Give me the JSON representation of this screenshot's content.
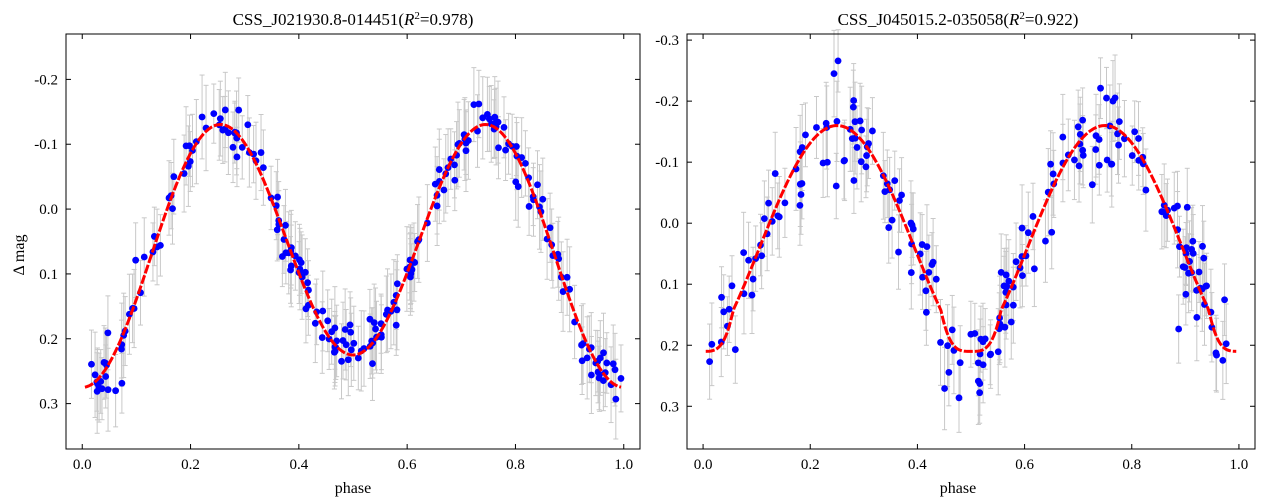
{
  "chart_data": [
    {
      "type": "scatter",
      "title_prefix": "CSS_J021930.8-014451(",
      "title_r": "R",
      "title_sup": "2",
      "title_suffix": "=0.978)",
      "xlabel": "phase",
      "ylabel": "Δ mag",
      "y_inverted": true,
      "xlim": [
        -0.03,
        1.03
      ],
      "ylim": [
        0.37,
        -0.27
      ],
      "xticks": [
        0.0,
        0.2,
        0.4,
        0.6,
        0.8,
        1.0
      ],
      "xtick_labels": [
        "0.0",
        "0.2",
        "0.4",
        "0.6",
        "0.8",
        "1.0"
      ],
      "yticks": [
        -0.2,
        -0.1,
        0.0,
        0.1,
        0.2,
        0.3
      ],
      "ytick_labels": [
        "-0.2",
        "-0.1",
        "0.0",
        "0.1",
        "0.2",
        "0.3"
      ],
      "fit": {
        "color": "#ff0000",
        "style": "dashed",
        "mean": 0.05,
        "amp2": -0.2,
        "amp1": 0.025,
        "phase_shift": 0.0
      },
      "points": {
        "color": "#0000ff",
        "count": 230,
        "scatter": 0.02,
        "error": 0.055,
        "seed": 11
      },
      "errorbar_color": "#c8c8c8",
      "grid": false
    },
    {
      "type": "scatter",
      "title_prefix": "CSS_J045015.2-035058(",
      "title_r": "R",
      "title_sup": "2",
      "title_suffix": "=0.922)",
      "xlabel": "phase",
      "ylabel": "",
      "y_inverted": true,
      "xlim": [
        -0.03,
        1.03
      ],
      "ylim": [
        0.37,
        -0.31
      ],
      "xticks": [
        0.0,
        0.2,
        0.4,
        0.6,
        0.8,
        1.0
      ],
      "xtick_labels": [
        "0.0",
        "0.2",
        "0.4",
        "0.6",
        "0.8",
        "1.0"
      ],
      "yticks": [
        -0.3,
        -0.2,
        -0.1,
        0.0,
        0.1,
        0.2,
        0.3
      ],
      "ytick_labels": [
        "-0.3",
        "-0.2",
        "-0.1",
        "0.0",
        "0.1",
        "0.2",
        "0.3"
      ],
      "fit": {
        "color": "#ff0000",
        "style": "dashed",
        "mean": 0.01,
        "amp2": -0.19,
        "amp1": 0.0,
        "phase_shift": 0.0,
        "flat_min": true
      },
      "points": {
        "color": "#0000ff",
        "count": 210,
        "scatter": 0.035,
        "error": 0.06,
        "seed": 29
      },
      "errorbar_color": "#c8c8c8",
      "grid": false
    }
  ]
}
